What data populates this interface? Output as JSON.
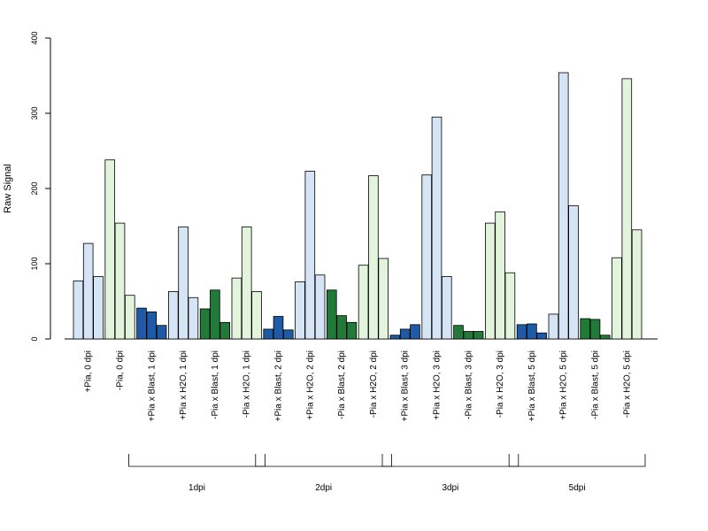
{
  "chart_data": {
    "type": "bar",
    "title": "",
    "xlabel": "",
    "ylabel": "Raw Signal",
    "ylim": [
      0,
      400
    ],
    "yticks": [
      0,
      100,
      200,
      300,
      400
    ],
    "grid": false,
    "bars_per_group": 3,
    "colors": {
      "plus_pia_light": "#d6e5f5",
      "minus_pia_light": "#e2f5dc",
      "plus_pia_blast": "#1f5aa6",
      "minus_pia_blast": "#217a37"
    },
    "categories": [
      "+Pia, 0 dpi",
      "-Pia, 0 dpi",
      "+Pia x Blast, 1 dpi",
      "+Pia x H2O, 1 dpi",
      "-Pia x Blast, 1 dpi",
      "-Pia x H2O, 1 dpi",
      "+Pia x Blast, 2 dpi",
      "+Pia x H2O, 2 dpi",
      "-Pia x Blast, 2 dpi",
      "-Pia x H2O, 2 dpi",
      "+Pia x Blast, 3 dpi",
      "+Pia x H2O, 3 dpi",
      "-Pia x Blast, 3 dpi",
      "-Pia x H2O, 3 dpi",
      "+Pia x Blast, 5 dpi",
      "+Pia x H2O, 5 dpi",
      "-Pia x Blast, 5 dpi",
      "-Pia x H2O, 5 dpi"
    ],
    "group_colors": [
      "plus_pia_light",
      "minus_pia_light",
      "plus_pia_blast",
      "plus_pia_light",
      "minus_pia_blast",
      "minus_pia_light",
      "plus_pia_blast",
      "plus_pia_light",
      "minus_pia_blast",
      "minus_pia_light",
      "plus_pia_blast",
      "plus_pia_light",
      "minus_pia_blast",
      "minus_pia_light",
      "plus_pia_blast",
      "plus_pia_light",
      "minus_pia_blast",
      "minus_pia_light"
    ],
    "values": [
      [
        77,
        127,
        83
      ],
      [
        238,
        154,
        58
      ],
      [
        41,
        36,
        18
      ],
      [
        63,
        149,
        55
      ],
      [
        40,
        65,
        22
      ],
      [
        81,
        149,
        63
      ],
      [
        13,
        30,
        12
      ],
      [
        76,
        223,
        85
      ],
      [
        65,
        31,
        22
      ],
      [
        98,
        217,
        107
      ],
      [
        5,
        13,
        19
      ],
      [
        218,
        295,
        83
      ],
      [
        18,
        10,
        10
      ],
      [
        154,
        169,
        88
      ],
      [
        19,
        20,
        8
      ],
      [
        33,
        354,
        177
      ],
      [
        27,
        26,
        5
      ],
      [
        108,
        346,
        145
      ]
    ],
    "timepoint_groups": [
      {
        "label": "1dpi",
        "first": 2,
        "last": 5
      },
      {
        "label": "2dpi",
        "first": 6,
        "last": 9
      },
      {
        "label": "3dpi",
        "first": 10,
        "last": 13
      },
      {
        "label": "5dpi",
        "first": 14,
        "last": 17
      }
    ]
  }
}
